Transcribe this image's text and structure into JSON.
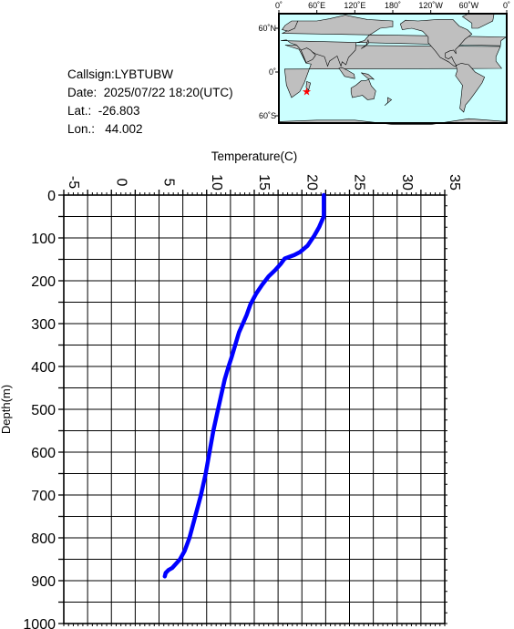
{
  "info": {
    "callsign": "Callsign:LYBTUBW",
    "date": "Date:  2025/07/22 18:20(UTC)",
    "lat": "Lat.:  -26.803",
    "lon": "Lon.:   44.002"
  },
  "map": {
    "lon_labels": [
      "0˚",
      "60˚E",
      "120˚E",
      "180˚",
      "120˚W",
      "60˚W",
      "0˚"
    ],
    "lat_labels": [
      "60˚N",
      "0˚",
      "60˚S"
    ],
    "station": {
      "lat": -26.803,
      "lon": 44.002
    },
    "ocean_color": "#ccffff",
    "land_color": "#bfbfbf",
    "marker_color": "#ff0000"
  },
  "chart_data": {
    "type": "line",
    "xlabel": "Temperature(C)",
    "ylabel": "Depth(m)",
    "xlim": [
      -5,
      35
    ],
    "ylim": [
      1000,
      0
    ],
    "x_ticks": [
      -5,
      0,
      5,
      10,
      15,
      20,
      25,
      30,
      35
    ],
    "x_tick_labels": [
      "-5",
      "0",
      "5",
      "10",
      "15",
      "20",
      "25",
      "30",
      "35"
    ],
    "y_ticks": [
      0,
      100,
      200,
      300,
      400,
      500,
      600,
      700,
      800,
      900,
      1000
    ],
    "y_tick_labels": [
      "0",
      "100",
      "200",
      "300",
      "400",
      "500",
      "600",
      "700",
      "800",
      "900",
      "1000"
    ],
    "grid": true,
    "line_color": "#0000ff",
    "series": [
      {
        "temperature": [
          22.3,
          22.3,
          22.2,
          21.8,
          21.3,
          20.6,
          19.8,
          19.2,
          18.2,
          17.8,
          17.2,
          16.5,
          15.8,
          15.2,
          14.6,
          14.2,
          13.8,
          13.4,
          13.0,
          12.6,
          12.3,
          11.9,
          11.5,
          11.1,
          10.7,
          10.3,
          9.9,
          9.4,
          8.8,
          8.2,
          7.7,
          7.2,
          6.8,
          6.4,
          6.0,
          5.7,
          5.6
        ],
        "depth": [
          0,
          50,
          55,
          75,
          95,
          118,
          133,
          140,
          148,
          160,
          175,
          190,
          210,
          230,
          255,
          280,
          300,
          320,
          350,
          380,
          400,
          430,
          470,
          510,
          550,
          600,
          650,
          700,
          750,
          800,
          830,
          850,
          860,
          870,
          875,
          882,
          890
        ]
      }
    ]
  }
}
